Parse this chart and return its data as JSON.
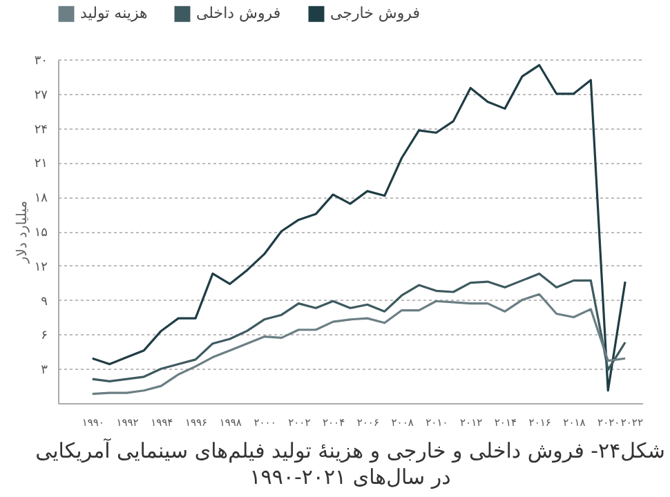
{
  "chart_data": {
    "type": "line",
    "title": "شکل۲۴- فروش داخلی و خارجی و هزینهٔ تولید فیلم‌های سینمایی آمریکایی",
    "subtitle": "در سال‌های ۲۰۲۱-۱۹۹۰",
    "ylabel": "میلیارد دلار",
    "x": [
      1990,
      1991,
      1992,
      1993,
      1994,
      1995,
      1996,
      1997,
      1998,
      1999,
      2000,
      2001,
      2002,
      2003,
      2004,
      2005,
      2006,
      2007,
      2008,
      2009,
      2010,
      2011,
      2012,
      2013,
      2014,
      2015,
      2016,
      2017,
      2018,
      2019,
      2020,
      2021
    ],
    "series": [
      {
        "name": "فروش خارجی",
        "color": "#1f3d45",
        "values": [
          3.9,
          3.4,
          4.0,
          4.6,
          6.3,
          7.4,
          7.4,
          11.3,
          10.4,
          11.6,
          13.0,
          15.0,
          16.0,
          16.5,
          18.2,
          17.4,
          18.5,
          18.1,
          21.4,
          23.8,
          23.6,
          24.6,
          27.5,
          26.3,
          25.7,
          28.5,
          29.5,
          27.0,
          27.0,
          28.2,
          1.1,
          10.6
        ]
      },
      {
        "name": "فروش داخلی",
        "color": "#3d5a60",
        "values": [
          2.1,
          1.9,
          2.1,
          2.3,
          3.0,
          3.4,
          3.8,
          5.2,
          5.6,
          6.3,
          7.3,
          7.7,
          8.7,
          8.3,
          8.9,
          8.3,
          8.6,
          8.0,
          9.4,
          10.3,
          9.8,
          9.7,
          10.5,
          10.6,
          10.1,
          10.7,
          11.3,
          10.1,
          10.7,
          10.7,
          2.9,
          5.3
        ]
      },
      {
        "name": "هزینه تولید",
        "color": "#6b7f84",
        "values": [
          0.8,
          0.9,
          0.9,
          1.1,
          1.5,
          2.5,
          3.2,
          4.0,
          4.6,
          5.2,
          5.8,
          5.7,
          6.4,
          6.4,
          7.1,
          7.3,
          7.4,
          7.0,
          8.1,
          8.1,
          8.9,
          8.8,
          8.7,
          8.7,
          8.0,
          9.0,
          9.5,
          7.8,
          7.5,
          8.2,
          3.7,
          3.9
        ]
      }
    ],
    "xlim": [
      1988,
      2022
    ],
    "xticks": [
      {
        "value": 1990,
        "label": "۱۹۹۰"
      },
      {
        "value": 1992,
        "label": "۱۹۹۲"
      },
      {
        "value": 1994,
        "label": "۱۹۹۴"
      },
      {
        "value": 1996,
        "label": "۱۹۹۶"
      },
      {
        "value": 1998,
        "label": "۱۹۹۸"
      },
      {
        "value": 2000,
        "label": "۲۰۰۰"
      },
      {
        "value": 2002,
        "label": "۲۰۰۲"
      },
      {
        "value": 2004,
        "label": "۲۰۰۴"
      },
      {
        "value": 2006,
        "label": "۲۰۰۶"
      },
      {
        "value": 2008,
        "label": "۲۰۰۸"
      },
      {
        "value": 2010,
        "label": "۲۰۱۰"
      },
      {
        "value": 2012,
        "label": "۲۰۱۲"
      },
      {
        "value": 2014,
        "label": "۲۰۱۴"
      },
      {
        "value": 2016,
        "label": "۲۰۱۶"
      },
      {
        "value": 2018,
        "label": "۲۰۱۸"
      },
      {
        "value": 2020,
        "label": "۲۰۲۰"
      },
      {
        "value": 2022,
        "label": "۲۰۲۲"
      }
    ],
    "ylim": [
      0,
      30
    ],
    "yticks": [
      {
        "value": 3,
        "label": "۳"
      },
      {
        "value": 6,
        "label": "۶"
      },
      {
        "value": 9,
        "label": "۹"
      },
      {
        "value": 12,
        "label": "۱۲"
      },
      {
        "value": 15,
        "label": "۱۵"
      },
      {
        "value": 18,
        "label": "۱۸"
      },
      {
        "value": 21,
        "label": "۲۱"
      },
      {
        "value": 24,
        "label": "۲۴"
      },
      {
        "value": 27,
        "label": "۲۷"
      },
      {
        "value": 30,
        "label": "۳۰"
      }
    ],
    "grid": "y",
    "legend": "top",
    "marker": "none",
    "line_style": "solid"
  }
}
